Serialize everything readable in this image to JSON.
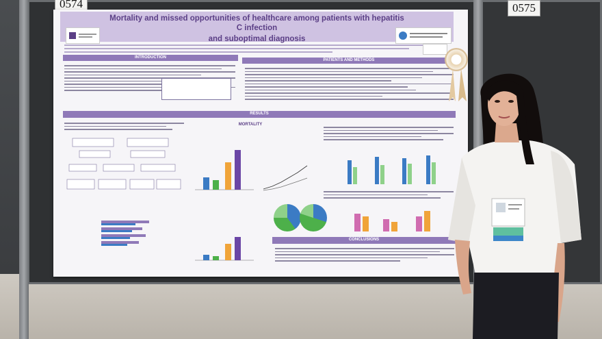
{
  "booth_numbers": {
    "left": "0574",
    "right": "0575"
  },
  "poster": {
    "title_line1": "Mortality and missed opportunities of healthcare among patients with hepatitis C infection",
    "title_line2": "and suboptimal diagnosis",
    "sections": {
      "introduction": "INTRODUCTION",
      "patients_methods": "PATIENTS AND METHODS",
      "results": "RESULTS",
      "mortality": "MORTALITY",
      "conclusions": "CONCLUSIONS"
    }
  },
  "colors": {
    "poster_accent": "#8f79b8",
    "title_band": "#cfc2e2",
    "shirt": "#f4f3f1",
    "hair": "#120d0c"
  }
}
